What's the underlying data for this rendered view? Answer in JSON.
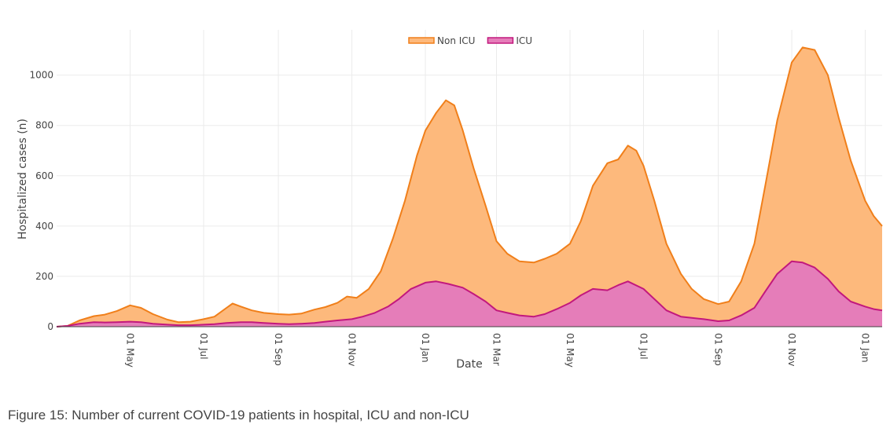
{
  "chart_data": {
    "type": "area",
    "title": "",
    "xlabel": "Date",
    "ylabel": "Hospitalized cases (n)",
    "ylim": [
      0,
      1180
    ],
    "yticks": [
      0,
      200,
      400,
      600,
      800,
      1000
    ],
    "ytick_labels": [
      "0",
      "200",
      "400",
      "600",
      "800",
      "1000"
    ],
    "x_start": "2020-03-01",
    "x_end": "2022-01-15",
    "xticks": [
      {
        "date": "2020-05-01",
        "label": "01 May"
      },
      {
        "date": "2020-07-01",
        "label": "01 Jul"
      },
      {
        "date": "2020-09-01",
        "label": "01 Sep"
      },
      {
        "date": "2020-11-01",
        "label": "01 Nov"
      },
      {
        "date": "2021-01-01",
        "label": "01 Jan"
      },
      {
        "date": "2021-03-01",
        "label": "01 Mar"
      },
      {
        "date": "2021-05-01",
        "label": "01 May"
      },
      {
        "date": "2021-07-01",
        "label": "01 Jul"
      },
      {
        "date": "2021-09-01",
        "label": "01 Sep"
      },
      {
        "date": "2021-11-01",
        "label": "01 Nov"
      },
      {
        "date": "2022-01-01",
        "label": "01 Jan"
      }
    ],
    "legend": "top-center",
    "series": [
      {
        "name": "Non ICU",
        "color": "#f07f1a",
        "fill": "#fdb97c",
        "points": [
          [
            "2020-03-01",
            0
          ],
          [
            "2020-03-10",
            3
          ],
          [
            "2020-03-20",
            25
          ],
          [
            "2020-04-01",
            42
          ],
          [
            "2020-04-10",
            48
          ],
          [
            "2020-04-20",
            62
          ],
          [
            "2020-05-01",
            85
          ],
          [
            "2020-05-10",
            75
          ],
          [
            "2020-05-20",
            50
          ],
          [
            "2020-06-01",
            28
          ],
          [
            "2020-06-10",
            18
          ],
          [
            "2020-06-20",
            20
          ],
          [
            "2020-07-01",
            30
          ],
          [
            "2020-07-10",
            40
          ],
          [
            "2020-07-20",
            75
          ],
          [
            "2020-07-25",
            92
          ],
          [
            "2020-08-01",
            80
          ],
          [
            "2020-08-10",
            65
          ],
          [
            "2020-08-20",
            55
          ],
          [
            "2020-09-01",
            50
          ],
          [
            "2020-09-10",
            48
          ],
          [
            "2020-09-20",
            52
          ],
          [
            "2020-10-01",
            68
          ],
          [
            "2020-10-10",
            78
          ],
          [
            "2020-10-20",
            95
          ],
          [
            "2020-10-28",
            120
          ],
          [
            "2020-11-05",
            115
          ],
          [
            "2020-11-15",
            150
          ],
          [
            "2020-11-25",
            220
          ],
          [
            "2020-12-05",
            350
          ],
          [
            "2020-12-15",
            500
          ],
          [
            "2020-12-25",
            680
          ],
          [
            "2021-01-01",
            780
          ],
          [
            "2021-01-10",
            850
          ],
          [
            "2021-01-18",
            900
          ],
          [
            "2021-01-25",
            880
          ],
          [
            "2021-02-01",
            780
          ],
          [
            "2021-02-10",
            630
          ],
          [
            "2021-02-20",
            480
          ],
          [
            "2021-03-01",
            340
          ],
          [
            "2021-03-10",
            290
          ],
          [
            "2021-03-20",
            260
          ],
          [
            "2021-04-01",
            255
          ],
          [
            "2021-04-10",
            270
          ],
          [
            "2021-04-20",
            290
          ],
          [
            "2021-05-01",
            330
          ],
          [
            "2021-05-10",
            420
          ],
          [
            "2021-05-20",
            560
          ],
          [
            "2021-06-01",
            650
          ],
          [
            "2021-06-10",
            665
          ],
          [
            "2021-06-18",
            720
          ],
          [
            "2021-06-25",
            700
          ],
          [
            "2021-07-01",
            640
          ],
          [
            "2021-07-10",
            500
          ],
          [
            "2021-07-20",
            330
          ],
          [
            "2021-08-01",
            210
          ],
          [
            "2021-08-10",
            150
          ],
          [
            "2021-08-20",
            110
          ],
          [
            "2021-09-01",
            90
          ],
          [
            "2021-09-10",
            100
          ],
          [
            "2021-09-20",
            180
          ],
          [
            "2021-10-01",
            330
          ],
          [
            "2021-10-10",
            560
          ],
          [
            "2021-10-20",
            820
          ],
          [
            "2021-11-01",
            1050
          ],
          [
            "2021-11-10",
            1110
          ],
          [
            "2021-11-20",
            1100
          ],
          [
            "2021-12-01",
            1000
          ],
          [
            "2021-12-10",
            830
          ],
          [
            "2021-12-20",
            660
          ],
          [
            "2022-01-01",
            500
          ],
          [
            "2022-01-08",
            440
          ],
          [
            "2022-01-15",
            400
          ]
        ]
      },
      {
        "name": "ICU",
        "color": "#c2187d",
        "fill": "#e57db9",
        "points": [
          [
            "2020-03-01",
            0
          ],
          [
            "2020-03-10",
            3
          ],
          [
            "2020-03-20",
            12
          ],
          [
            "2020-04-01",
            18
          ],
          [
            "2020-04-10",
            17
          ],
          [
            "2020-04-20",
            18
          ],
          [
            "2020-05-01",
            20
          ],
          [
            "2020-05-10",
            18
          ],
          [
            "2020-05-20",
            12
          ],
          [
            "2020-06-01",
            8
          ],
          [
            "2020-06-10",
            6
          ],
          [
            "2020-06-20",
            6
          ],
          [
            "2020-07-01",
            8
          ],
          [
            "2020-07-10",
            10
          ],
          [
            "2020-07-20",
            15
          ],
          [
            "2020-08-01",
            18
          ],
          [
            "2020-08-10",
            18
          ],
          [
            "2020-08-20",
            15
          ],
          [
            "2020-09-01",
            12
          ],
          [
            "2020-09-10",
            10
          ],
          [
            "2020-09-20",
            12
          ],
          [
            "2020-10-01",
            15
          ],
          [
            "2020-10-10",
            20
          ],
          [
            "2020-10-20",
            25
          ],
          [
            "2020-11-01",
            30
          ],
          [
            "2020-11-10",
            40
          ],
          [
            "2020-11-20",
            55
          ],
          [
            "2020-12-01",
            80
          ],
          [
            "2020-12-10",
            110
          ],
          [
            "2020-12-20",
            150
          ],
          [
            "2021-01-01",
            175
          ],
          [
            "2021-01-10",
            180
          ],
          [
            "2021-01-20",
            170
          ],
          [
            "2021-02-01",
            155
          ],
          [
            "2021-02-10",
            130
          ],
          [
            "2021-02-20",
            100
          ],
          [
            "2021-03-01",
            65
          ],
          [
            "2021-03-10",
            55
          ],
          [
            "2021-03-20",
            45
          ],
          [
            "2021-04-01",
            40
          ],
          [
            "2021-04-10",
            50
          ],
          [
            "2021-04-20",
            70
          ],
          [
            "2021-05-01",
            95
          ],
          [
            "2021-05-10",
            125
          ],
          [
            "2021-05-20",
            150
          ],
          [
            "2021-06-01",
            145
          ],
          [
            "2021-06-10",
            165
          ],
          [
            "2021-06-18",
            180
          ],
          [
            "2021-07-01",
            150
          ],
          [
            "2021-07-10",
            110
          ],
          [
            "2021-07-20",
            65
          ],
          [
            "2021-08-01",
            40
          ],
          [
            "2021-08-10",
            35
          ],
          [
            "2021-08-20",
            30
          ],
          [
            "2021-09-01",
            22
          ],
          [
            "2021-09-10",
            25
          ],
          [
            "2021-09-20",
            45
          ],
          [
            "2021-10-01",
            75
          ],
          [
            "2021-10-10",
            140
          ],
          [
            "2021-10-20",
            210
          ],
          [
            "2021-11-01",
            260
          ],
          [
            "2021-11-10",
            255
          ],
          [
            "2021-11-20",
            235
          ],
          [
            "2021-12-01",
            190
          ],
          [
            "2021-12-10",
            140
          ],
          [
            "2021-12-20",
            100
          ],
          [
            "2022-01-01",
            80
          ],
          [
            "2022-01-08",
            70
          ],
          [
            "2022-01-15",
            65
          ]
        ]
      }
    ]
  },
  "caption": "Figure 15: Number of current COVID-19 patients in hospital, ICU and non-ICU"
}
